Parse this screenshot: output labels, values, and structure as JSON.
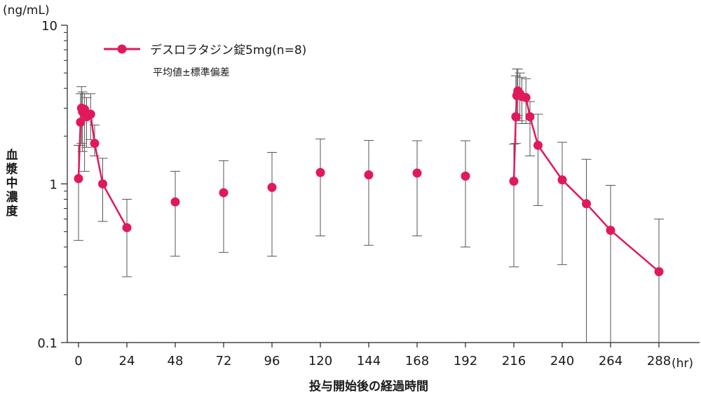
{
  "chart_data": {
    "type": "line",
    "y_scale": "log",
    "ylim": [
      0.1,
      10
    ],
    "xlim": [
      -2,
      300
    ],
    "y_unit": "(ng/mL)",
    "x_unit": "(hr)",
    "xlabel": "投与開始後の経過時間",
    "ylabel": "血漿中濃度",
    "y_ticks": [
      {
        "value": 0.1,
        "label": "0.1"
      },
      {
        "value": 1,
        "label": "1"
      },
      {
        "value": 10,
        "label": "10"
      }
    ],
    "x_ticks": [
      0,
      24,
      48,
      72,
      96,
      120,
      144,
      168,
      192,
      216,
      240,
      264,
      288
    ],
    "x_tick_labels": [
      "0",
      "24",
      "48",
      "72",
      "96",
      "120",
      "144",
      "168",
      "192",
      "216",
      "240",
      "264",
      "288"
    ],
    "legend": {
      "label": "デスロラタジン錠5mg(n=8)",
      "sublabel": "平均値±標準偏差",
      "placement": "top-left"
    },
    "line_color": "#e0195d",
    "series": [
      {
        "name": "デスロラタジン錠5mg(n=8)",
        "points": [
          {
            "x": 0,
            "y": 1.08,
            "lo": 0.44,
            "hi": 1.75
          },
          {
            "x": 1,
            "y": 2.45,
            "lo": 1.75,
            "hi": 3.7
          },
          {
            "x": 1.5,
            "y": 3.0,
            "lo": 1.8,
            "hi": 4.1
          },
          {
            "x": 2,
            "y": 2.85,
            "lo": 1.6,
            "hi": 3.8
          },
          {
            "x": 3,
            "y": 2.95,
            "lo": 1.2,
            "hi": 3.7
          },
          {
            "x": 4,
            "y": 2.65,
            "lo": 1.7,
            "hi": 3.5
          },
          {
            "x": 6,
            "y": 2.75,
            "lo": 1.9,
            "hi": 3.7
          },
          {
            "x": 8,
            "y": 1.8,
            "lo": 1.5,
            "hi": 2.35
          },
          {
            "x": 12,
            "y": 1.0,
            "lo": 0.58,
            "hi": 1.45
          },
          {
            "x": 24,
            "y": 0.53,
            "lo": 0.26,
            "hi": 0.8
          },
          {
            "x": 48,
            "y": 0.77,
            "lo": 0.35,
            "hi": 1.2
          },
          {
            "x": 72,
            "y": 0.88,
            "lo": 0.37,
            "hi": 1.4
          },
          {
            "x": 96,
            "y": 0.95,
            "lo": 0.35,
            "hi": 1.58
          },
          {
            "x": 120,
            "y": 1.18,
            "lo": 0.47,
            "hi": 1.92
          },
          {
            "x": 144,
            "y": 1.14,
            "lo": 0.41,
            "hi": 1.88
          },
          {
            "x": 168,
            "y": 1.17,
            "lo": 0.47,
            "hi": 1.87
          },
          {
            "x": 192,
            "y": 1.12,
            "lo": 0.4,
            "hi": 1.87
          },
          {
            "x": 216,
            "y": 1.04,
            "lo": 0.3,
            "hi": 1.78
          },
          {
            "x": 217,
            "y": 2.65,
            "lo": 1.8,
            "hi": 4.8
          },
          {
            "x": 217.5,
            "y": 3.6,
            "lo": 2.6,
            "hi": 5.3
          },
          {
            "x": 218,
            "y": 3.85,
            "lo": 2.7,
            "hi": 5.3
          },
          {
            "x": 219,
            "y": 3.7,
            "lo": 2.5,
            "hi": 5.0
          },
          {
            "x": 220,
            "y": 3.55,
            "lo": 2.4,
            "hi": 4.7
          },
          {
            "x": 222,
            "y": 3.5,
            "lo": 2.4,
            "hi": 4.6
          },
          {
            "x": 224,
            "y": 2.65,
            "lo": 1.5,
            "hi": 3.3
          },
          {
            "x": 228,
            "y": 1.75,
            "lo": 0.73,
            "hi": 2.75
          },
          {
            "x": 240,
            "y": 1.06,
            "lo": 0.31,
            "hi": 1.83
          },
          {
            "x": 252,
            "y": 0.75,
            "lo": 0.1,
            "hi": 1.43
          },
          {
            "x": 264,
            "y": 0.51,
            "lo": 0.1,
            "hi": 0.98
          },
          {
            "x": 288,
            "y": 0.28,
            "lo": 0.1,
            "hi": 0.6
          }
        ]
      }
    ]
  }
}
